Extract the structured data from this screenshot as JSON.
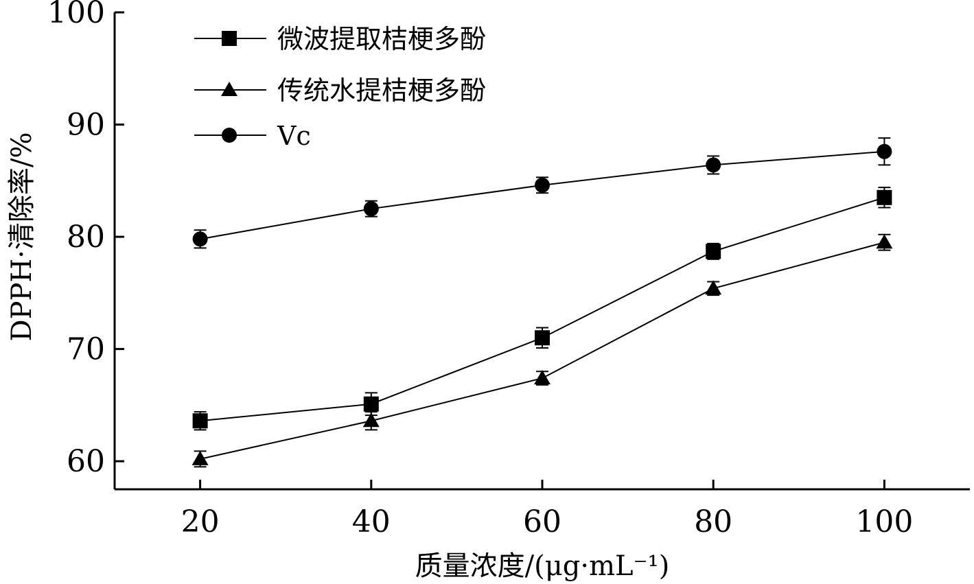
{
  "chart_data": {
    "type": "line",
    "xlabel": "质量浓度/(μg·mL⁻¹)",
    "ylabel": "DPPH·清除率/%",
    "x": [
      20,
      40,
      60,
      80,
      100
    ],
    "xlim": [
      10,
      110
    ],
    "ylim": [
      57.5,
      100
    ],
    "xticks": [
      "20",
      "40",
      "60",
      "80",
      "100"
    ],
    "yticks": [
      "60",
      "70",
      "80",
      "90",
      "100"
    ],
    "legend_position": "top-left",
    "series": [
      {
        "name": "微波提取桔梗多酚",
        "marker": "square",
        "values": [
          63.6,
          65.1,
          71.0,
          78.7,
          83.5
        ],
        "errors": [
          0.8,
          1.0,
          0.9,
          0.7,
          0.9
        ]
      },
      {
        "name": "传统水提桔梗多酚",
        "marker": "triangle",
        "values": [
          60.2,
          63.6,
          67.4,
          75.4,
          79.5
        ],
        "errors": [
          0.7,
          0.8,
          0.6,
          0.6,
          0.7
        ]
      },
      {
        "name": "Vc",
        "marker": "circle",
        "values": [
          79.8,
          82.5,
          84.6,
          86.4,
          87.6
        ],
        "errors": [
          0.8,
          0.7,
          0.7,
          0.8,
          1.2
        ]
      }
    ]
  }
}
